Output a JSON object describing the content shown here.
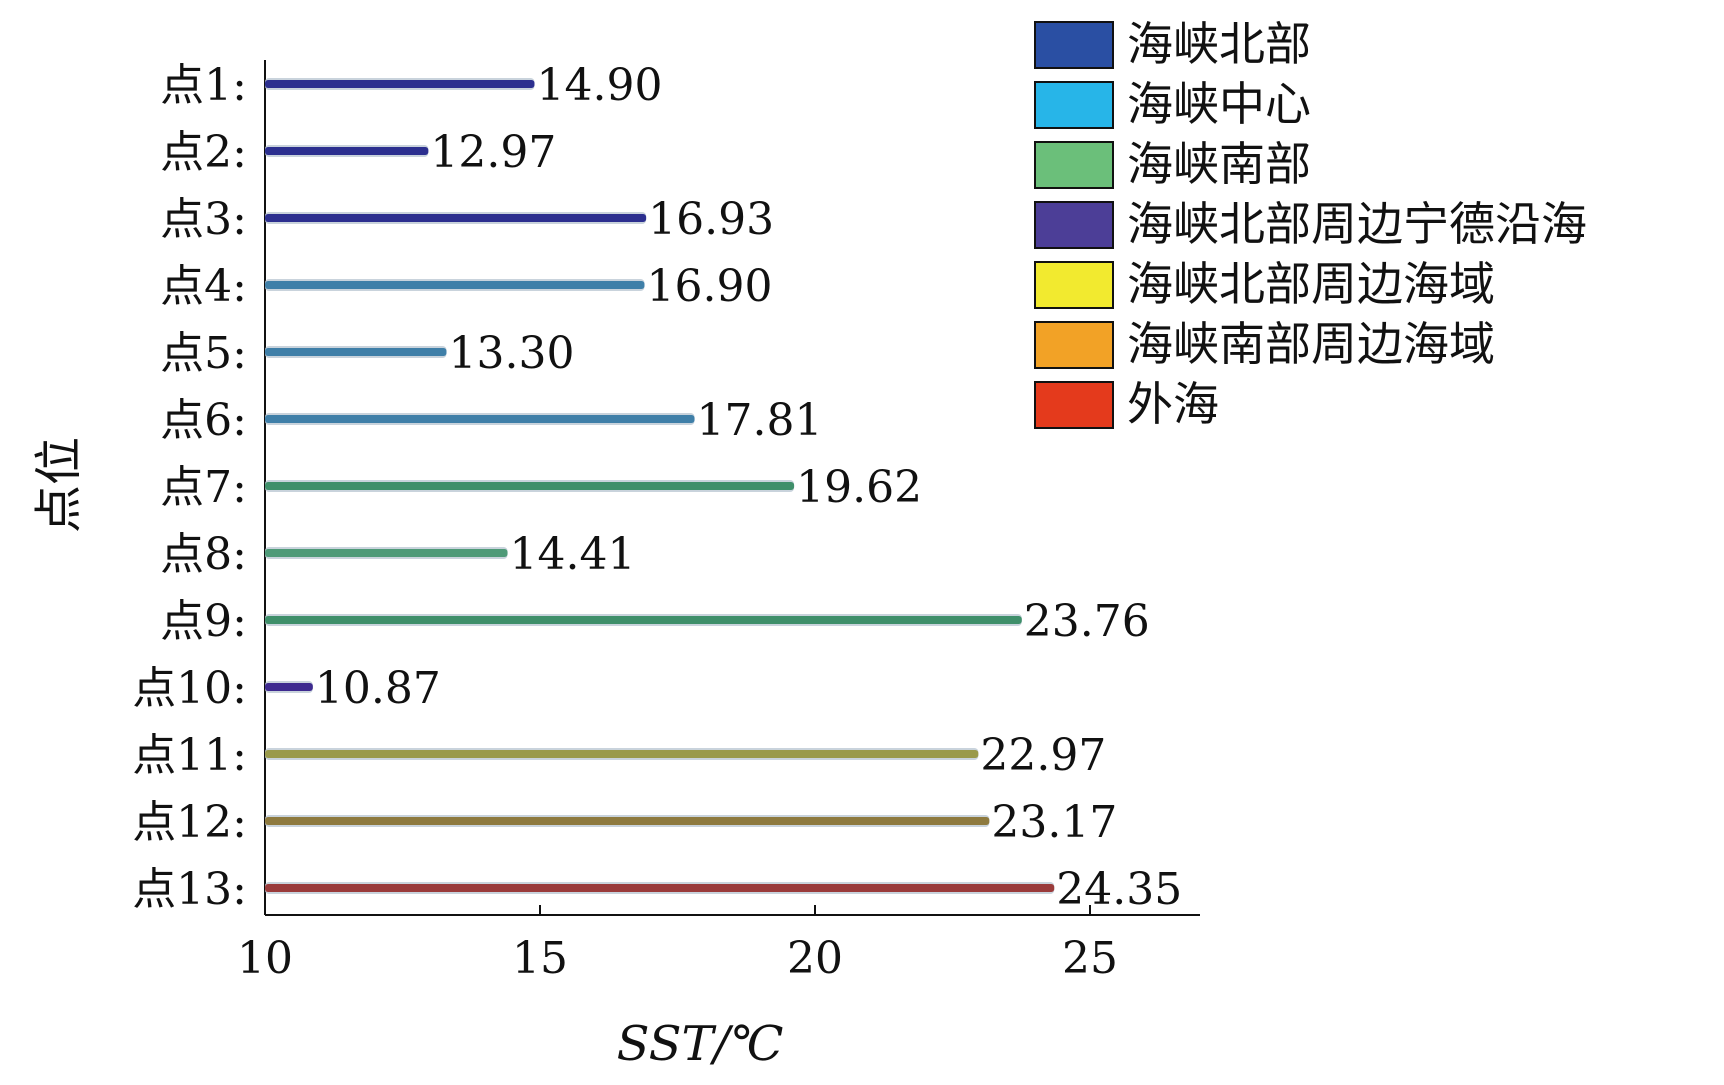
{
  "chart_data": {
    "type": "bar",
    "orientation": "horizontal",
    "xlabel": "SST/℃",
    "ylabel": "点位",
    "xlim": [
      10,
      27
    ],
    "xticks": [
      "10",
      "15",
      "20",
      "25"
    ],
    "xtick_values": [
      10,
      15,
      20,
      25
    ],
    "legend_position": "top-right",
    "grid": false,
    "categories": [
      "点1:",
      "点2:",
      "点3:",
      "点4:",
      "点5:",
      "点6:",
      "点7:",
      "点8:",
      "点9:",
      "点10:",
      "点11:",
      "点12:",
      "点13:"
    ],
    "values": [
      14.9,
      12.97,
      16.93,
      16.9,
      13.3,
      17.81,
      19.62,
      14.41,
      23.76,
      10.87,
      22.97,
      23.17,
      24.35
    ],
    "value_labels": [
      "14.90",
      "12.97",
      "16.93",
      "16.90",
      "13.30",
      "17.81",
      "19.62",
      "14.41",
      "23.76",
      "10.87",
      "22.97",
      "23.17",
      "24.35"
    ],
    "point_group": [
      0,
      0,
      0,
      1,
      1,
      1,
      2,
      2,
      2,
      3,
      4,
      5,
      6
    ],
    "legend": [
      {
        "label": "海峡北部",
        "color": "#2a4fa3"
      },
      {
        "label": "海峡中心",
        "color": "#27b5e8"
      },
      {
        "label": "海峡南部",
        "color": "#6bbf7a"
      },
      {
        "label": "海峡北部周边宁德沿海",
        "color": "#4c3e97"
      },
      {
        "label": "海峡北部周边海域",
        "color": "#f2ea2f"
      },
      {
        "label": "海峡南部周边海域",
        "color": "#f2a226"
      },
      {
        "label": "外海",
        "color": "#e43a1c"
      }
    ],
    "bar_colors": [
      "#2c2f8f",
      "#2c2f8f",
      "#2c2f8f",
      "#3f7fa8",
      "#3f7fa8",
      "#3f7fa8",
      "#3f8f6a",
      "#4e9a78",
      "#3f8f6a",
      "#3e2a8f",
      "#9a9a4a",
      "#8e7a3f",
      "#9a3b3b"
    ]
  }
}
